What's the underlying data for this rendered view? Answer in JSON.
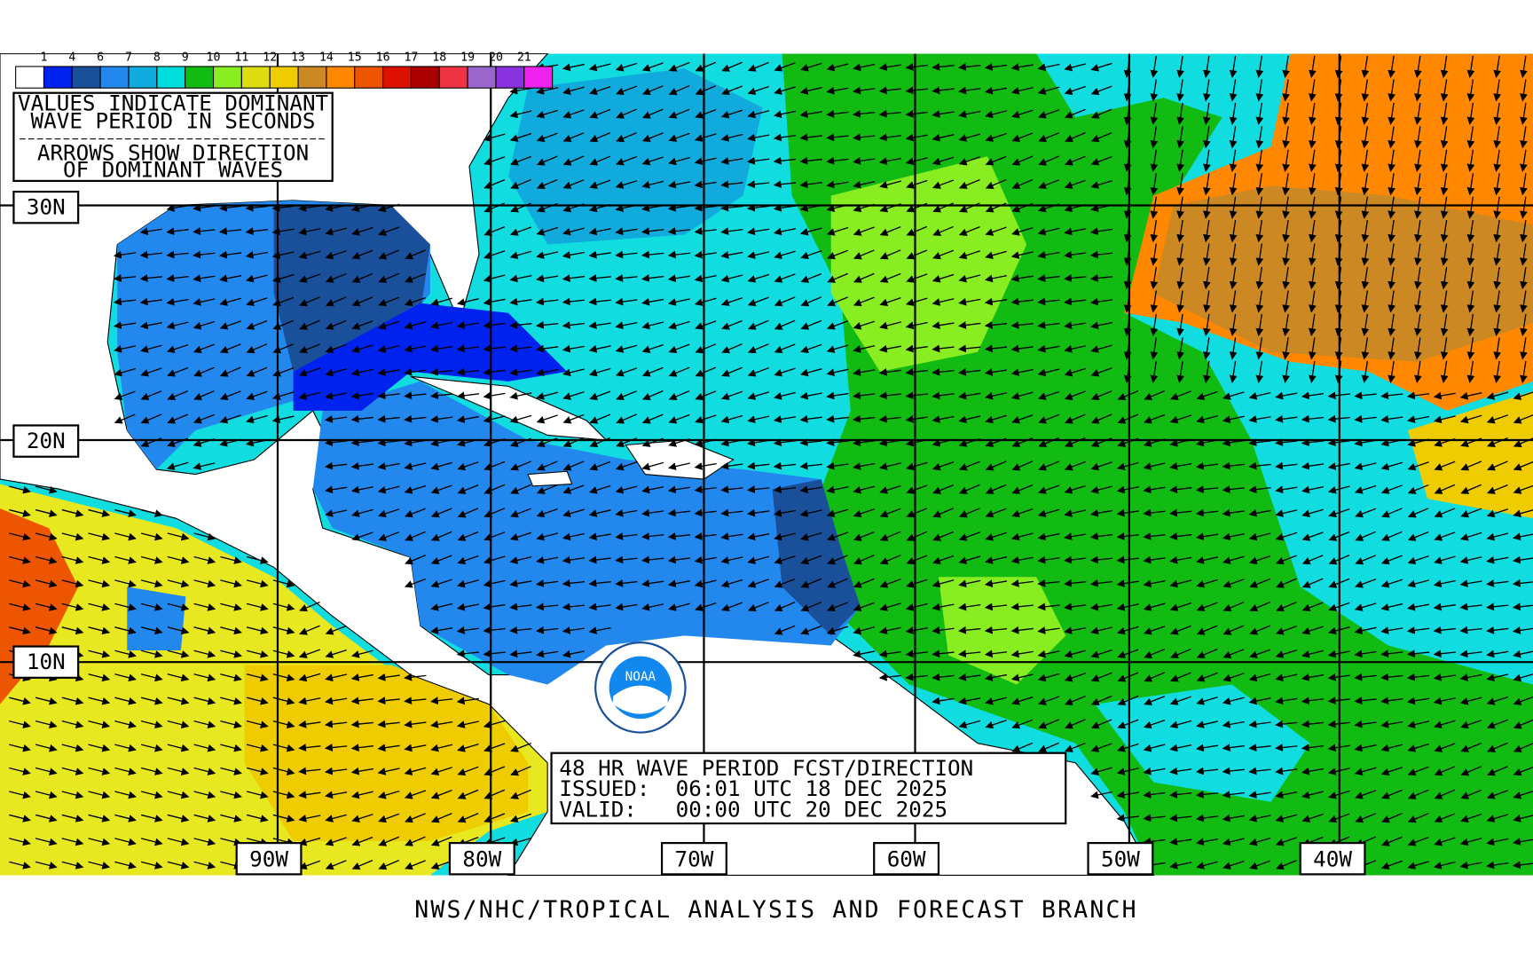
{
  "legend": {
    "labels": [
      "1",
      "4",
      "6",
      "7",
      "8",
      "9",
      "10",
      "11",
      "12",
      "13",
      "14",
      "15",
      "16",
      "17",
      "18",
      "19",
      "20",
      "21"
    ],
    "colors": [
      "#ffffff",
      "#0022ee",
      "#1a4f99",
      "#2288ee",
      "#11aadd",
      "#00dddd",
      "#11bb11",
      "#88ee22",
      "#dddd11",
      "#eecc00",
      "#cc8822",
      "#ff8800",
      "#ee5500",
      "#dd1100",
      "#aa0000",
      "#ee3344",
      "#9966cc",
      "#8833dd",
      "#ee22ee"
    ]
  },
  "note": {
    "lines": [
      "VALUES INDICATE DOMINANT",
      "WAVE PERIOD IN SECONDS",
      "ARROWS SHOW DIRECTION",
      "OF DOMINANT WAVES"
    ]
  },
  "latitudes": [
    "30N",
    "20N",
    "10N"
  ],
  "longitudes": [
    "90W",
    "80W",
    "70W",
    "60W",
    "50W",
    "40W"
  ],
  "title_box": {
    "lines": [
      "48 HR WAVE PERIOD FCST/DIRECTION",
      "ISSUED:  06:01 UTC 18 DEC 2025",
      "VALID:   00:00 UTC 20 DEC 2025"
    ]
  },
  "logo": "NOAA",
  "footer": "NWS/NHC/TROPICAL ANALYSIS AND FORECAST BRANCH"
}
